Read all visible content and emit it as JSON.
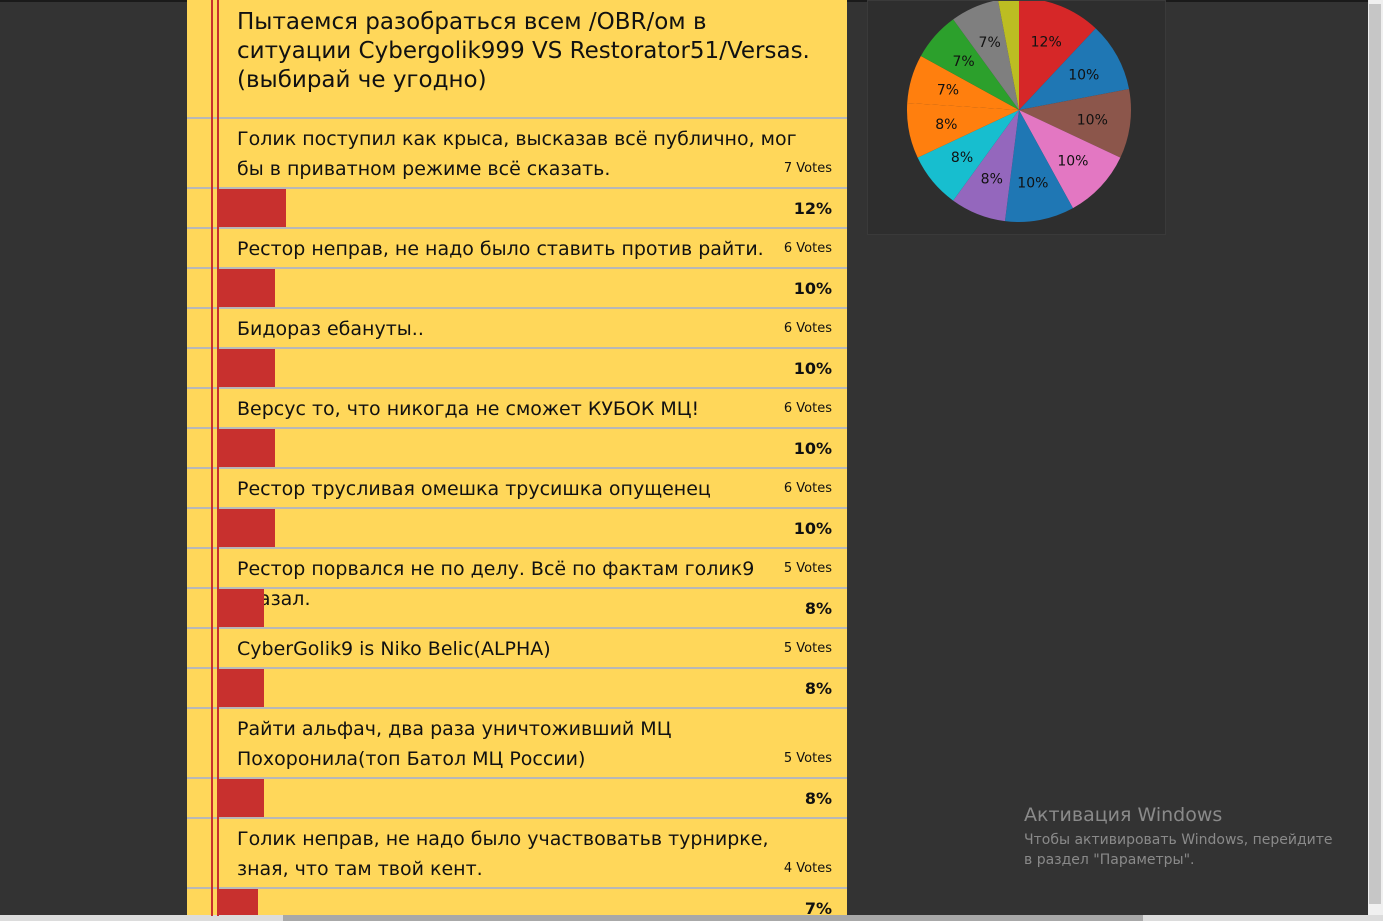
{
  "poll": {
    "title": "Пытаемся разобраться всем /OBR/ом в ситуации Cybergolik999 VS Restorator51/Versas.(выбирай че угодно)",
    "options": [
      {
        "text": "Голик поступил как крыса, высказав всё публично, мог бы в приватном режиме всё сказать.",
        "votes": "7 Votes",
        "percent": "12%",
        "fraction": 0.12
      },
      {
        "text": "Рестор неправ, не надо было ставить против райти.",
        "votes": "6 Votes",
        "percent": "10%",
        "fraction": 0.1
      },
      {
        "text": "Бидораз ебануты..",
        "votes": "6 Votes",
        "percent": "10%",
        "fraction": 0.1
      },
      {
        "text": "Версус то, что никогда не сможет КУБОК МЦ!",
        "votes": "6 Votes",
        "percent": "10%",
        "fraction": 0.1
      },
      {
        "text": "Рестор трусливая омешка трусишка опущенец",
        "votes": "6 Votes",
        "percent": "10%",
        "fraction": 0.1
      },
      {
        "text": "Рестор порвался не по делу. Всё по фактам голик9 сказал.",
        "votes": "5 Votes",
        "percent": "8%",
        "fraction": 0.08
      },
      {
        "text": "CyberGolik9 is Niko Belic(ALPHA)",
        "votes": "5 Votes",
        "percent": "8%",
        "fraction": 0.08
      },
      {
        "text": "Райти альфач, два раза уничтоживший МЦ Похоронила(топ Батол МЦ России)",
        "votes": "5 Votes",
        "percent": "8%",
        "fraction": 0.08
      },
      {
        "text": "Голик неправ, не надо было участвоватьв турнирке, зная, что там твой кент.",
        "votes": "4 Votes",
        "percent": "7%",
        "fraction": 0.07
      }
    ]
  },
  "chart_data": {
    "type": "pie",
    "slices": [
      {
        "label": "12%",
        "value": 12,
        "color": "#D62728"
      },
      {
        "label": "10%",
        "value": 10,
        "color": "#1F77B4"
      },
      {
        "label": "10%",
        "value": 10,
        "color": "#8C564B"
      },
      {
        "label": "10%",
        "value": 10,
        "color": "#E377C2"
      },
      {
        "label": "10%",
        "value": 10,
        "color": "#1F77B4"
      },
      {
        "label": "8%",
        "value": 8,
        "color": "#9467BD"
      },
      {
        "label": "8%",
        "value": 8,
        "color": "#17BECF"
      },
      {
        "label": "8%",
        "value": 8,
        "color": "#FF7F0E"
      },
      {
        "label": "7%",
        "value": 7,
        "color": "#FF7F0E"
      },
      {
        "label": "7%",
        "value": 7,
        "color": "#2CA02C"
      },
      {
        "label": "7%",
        "value": 7,
        "color": "#7F7F7F"
      },
      {
        "label": "",
        "value": 3,
        "color": "#BCBD22"
      }
    ]
  },
  "watermark": {
    "title": "Активация Windows",
    "text": "Чтобы активировать Windows, перейдите в раздел \"Параметры\"."
  },
  "colors": {
    "poll_background": "#FFD75A",
    "bar": "#C8302E",
    "page_background": "#333333"
  }
}
